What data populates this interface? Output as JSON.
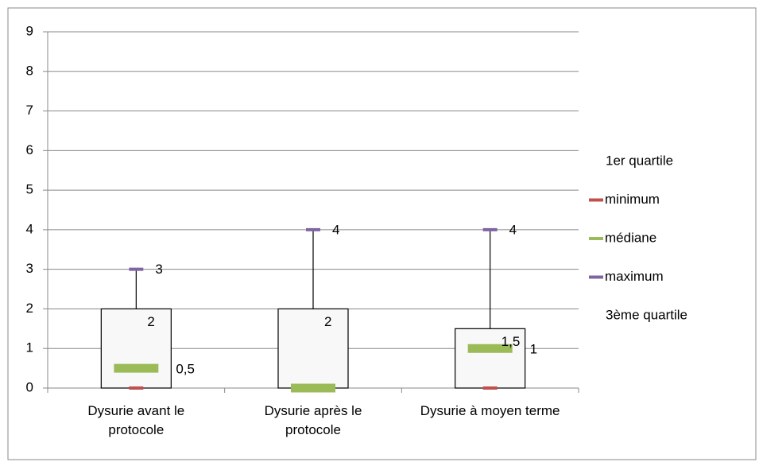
{
  "chart_data": {
    "type": "box",
    "categories": [
      "Dysurie avant le protocole",
      "Dysurie après le protocole",
      "Dysurie à moyen terme"
    ],
    "series": [
      {
        "name": "1er quartile",
        "color": null,
        "values": [
          0,
          0,
          0
        ]
      },
      {
        "name": "minimum",
        "color": "#c0504d",
        "values": [
          0,
          0,
          0
        ]
      },
      {
        "name": "médiane",
        "color": "#9bbb59",
        "values": [
          0.5,
          0,
          1
        ],
        "value_labels": [
          "0,5",
          null,
          "1"
        ]
      },
      {
        "name": "maximum",
        "color": "#8064a2",
        "values": [
          3,
          4,
          4
        ],
        "value_labels": [
          "3",
          "4",
          "4"
        ]
      },
      {
        "name": "3ème quartile",
        "color": null,
        "values": [
          2,
          2,
          1.5
        ],
        "value_labels": [
          "2",
          "2",
          "1,5"
        ]
      }
    ],
    "ylim": [
      0,
      9
    ],
    "yticks": [
      0,
      1,
      2,
      3,
      4,
      5,
      6,
      7,
      8,
      9
    ],
    "grid": true,
    "legend": "right"
  }
}
